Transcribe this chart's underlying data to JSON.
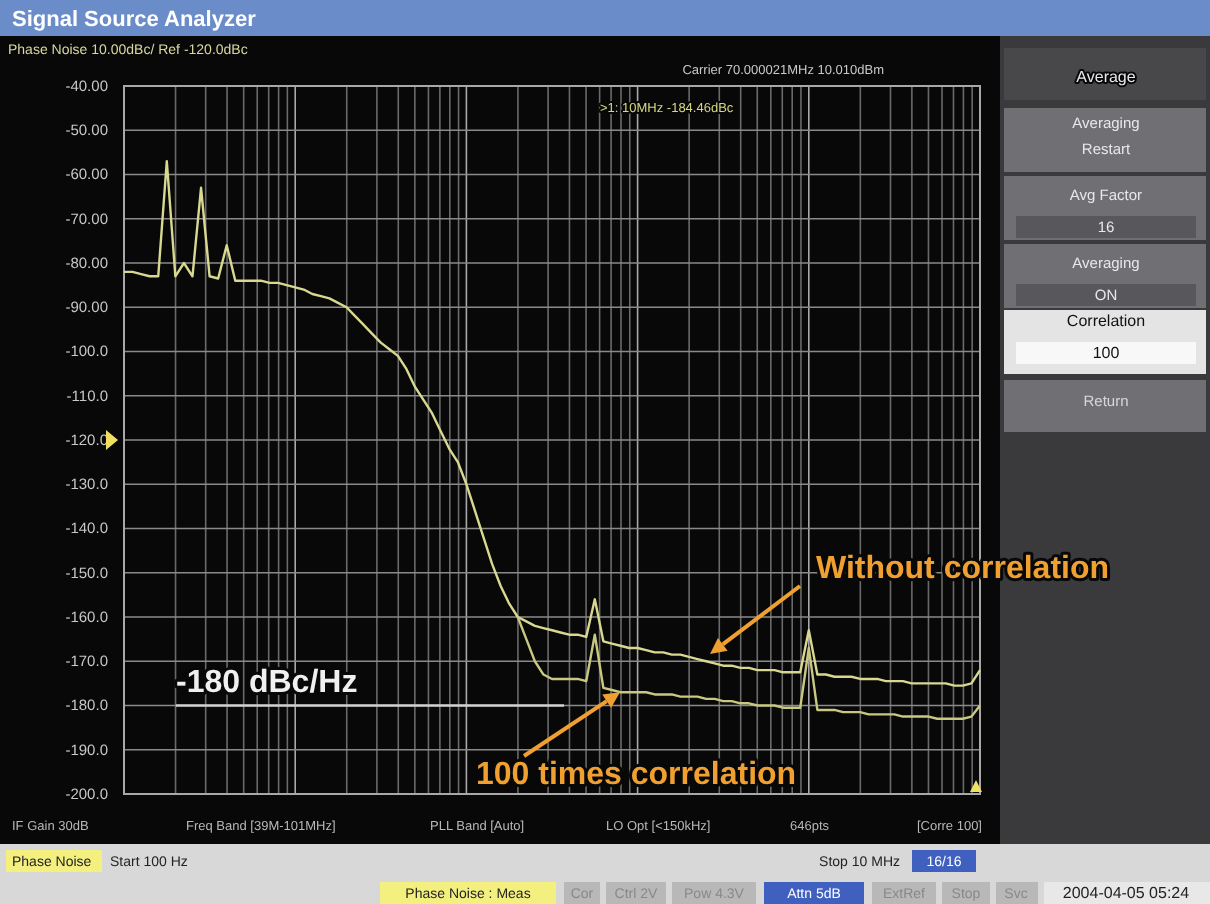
{
  "chart_data": {
    "type": "line",
    "title": "Signal Source Analyzer",
    "categories": [
      null,
      null,
      null,
      null,
      null,
      null,
      null,
      null,
      null,
      null,
      null,
      null,
      null,
      null,
      null,
      null,
      null,
      null,
      null,
      null,
      null,
      null,
      null,
      null,
      null,
      null,
      null,
      null,
      null,
      null,
      null,
      null,
      null,
      null,
      null,
      null,
      null,
      null,
      null,
      null,
      null,
      null,
      null,
      null,
      null,
      null,
      null,
      null,
      null,
      null,
      null,
      null,
      null,
      null,
      null,
      null,
      null,
      null,
      null,
      null,
      null,
      null,
      null,
      null,
      null,
      null,
      null,
      null,
      null,
      null,
      null,
      null,
      null,
      null,
      null,
      null,
      null,
      null,
      null,
      null,
      null,
      null,
      null,
      null,
      null,
      null,
      null,
      null,
      null,
      null,
      null,
      null,
      null,
      null,
      null,
      null,
      null,
      null,
      null,
      null,
      null
    ],
    "ylim": [
      -200,
      -40
    ],
    "yticks": [
      {
        "value": -40,
        "label": "-40.00"
      },
      {
        "value": -50,
        "label": "-50.00"
      },
      {
        "value": -60,
        "label": "-60.00"
      },
      {
        "value": -70,
        "label": "-70.00"
      },
      {
        "value": -80,
        "label": "-80.00"
      },
      {
        "value": -90,
        "label": "-90.00"
      },
      {
        "value": -100,
        "label": "-100.0"
      },
      {
        "value": -110,
        "label": "-110.0"
      },
      {
        "value": -120,
        "label": "-120.0"
      },
      {
        "value": -130,
        "label": "-130.0"
      },
      {
        "value": -140,
        "label": "-140.0"
      },
      {
        "value": -150,
        "label": "-150.0"
      },
      {
        "value": -160,
        "label": "-160.0"
      },
      {
        "value": -170,
        "label": "-170.0"
      },
      {
        "value": -180,
        "label": "-180.0"
      },
      {
        "value": -190,
        "label": "-190.0"
      },
      {
        "value": -200,
        "label": "-200.0"
      }
    ],
    "grid": true,
    "tick_labels": "y",
    "series": [
      {
        "color": "#d8d890",
        "values": [
          -82,
          -82,
          -82.5,
          -83,
          -83,
          -57,
          -83,
          -80,
          -83,
          -63,
          -83,
          -83.5,
          -76,
          -84,
          -84,
          -84,
          -84,
          -84.5,
          -84.5,
          -85,
          -85.5,
          -86,
          -87,
          -87.5,
          -88,
          -89,
          -90,
          -92,
          -94,
          -96,
          -98,
          -99.5,
          -101,
          -104,
          -108,
          -111,
          -114,
          -118,
          -122,
          -125,
          -130,
          -136,
          -142,
          -148,
          -153,
          -157,
          -160,
          -161,
          -162,
          -162.5,
          -163,
          -163.5,
          -164,
          -164,
          -164.5,
          -156,
          -165.5,
          -166,
          -166.5,
          -167,
          -167,
          -167.5,
          -168,
          -168,
          -168.5,
          -168.5,
          -169,
          -169.5,
          -170,
          -170.5,
          -171,
          -171,
          -171.5,
          -171.5,
          -172,
          -172,
          -172,
          -172.5,
          -172.5,
          -172.5,
          -163,
          -173,
          -173,
          -173.5,
          -173.5,
          -173.5,
          -174,
          -174,
          -174,
          -174.5,
          -174.5,
          -174.5,
          -175,
          -175,
          -175,
          -175,
          -175,
          -175.5,
          -175.5,
          -175,
          -172
        ]
      },
      {
        "color": "#c8c880",
        "values": [
          null,
          null,
          null,
          null,
          null,
          null,
          null,
          null,
          null,
          null,
          null,
          null,
          null,
          null,
          null,
          null,
          null,
          null,
          null,
          null,
          null,
          null,
          null,
          null,
          null,
          null,
          null,
          null,
          null,
          null,
          null,
          null,
          null,
          null,
          null,
          null,
          null,
          null,
          null,
          null,
          null,
          null,
          null,
          null,
          null,
          null,
          -160,
          -165,
          -170,
          -173,
          -174,
          -174,
          -174,
          -174,
          -174.5,
          -164,
          -176,
          -176.5,
          -177,
          -177,
          -177,
          -177,
          -177.5,
          -177.5,
          -177.5,
          -178,
          -178,
          -178,
          -178.5,
          -178.5,
          -179,
          -179,
          -179.5,
          -179.5,
          -180,
          -180,
          -180,
          -180.5,
          -180.5,
          -180.5,
          -167,
          -181,
          -181,
          -181,
          -181.5,
          -181.5,
          -181.5,
          -182,
          -182,
          -182,
          -182,
          -182.5,
          -182.5,
          -182.5,
          -182.5,
          -183,
          -183,
          -183,
          -183,
          -182.5,
          -180
        ]
      }
    ],
    "ref_lines": [
      {
        "axis": "y",
        "value": -180,
        "label": "-180 dBc/Hz",
        "color": "#d0d0d0"
      }
    ],
    "annotations": [
      "Phase Noise 10.00dBc/ Ref -120.0dBc",
      "Carrier 70.000021MHz  10.010dBm",
      ">1: 10MHz -184.46dBc",
      "IF Gain 30dB",
      "Freq Band [39M-101MHz]",
      "PLL Band [Auto]",
      "LO Opt [<150kHz]",
      "646pts",
      "[Corre 100]",
      "Phase Noise",
      "Start 100 Hz",
      "Stop 10 MHz",
      "16/16",
      "Phase Noise : Meas",
      "Cor",
      "Ctrl 2V",
      "Pow 4.3V",
      "Attn 5dB",
      "ExtRef",
      "Stop",
      "Svc",
      "2004-04-05 05:24",
      "Average",
      "Averaging Restart",
      "Avg Factor",
      "16",
      "Averaging",
      "ON",
      "Correlation",
      "100",
      "Return",
      "Without correlation",
      {
        "text": "100 times correlation",
        "y": -177
      }
    ]
  }
}
